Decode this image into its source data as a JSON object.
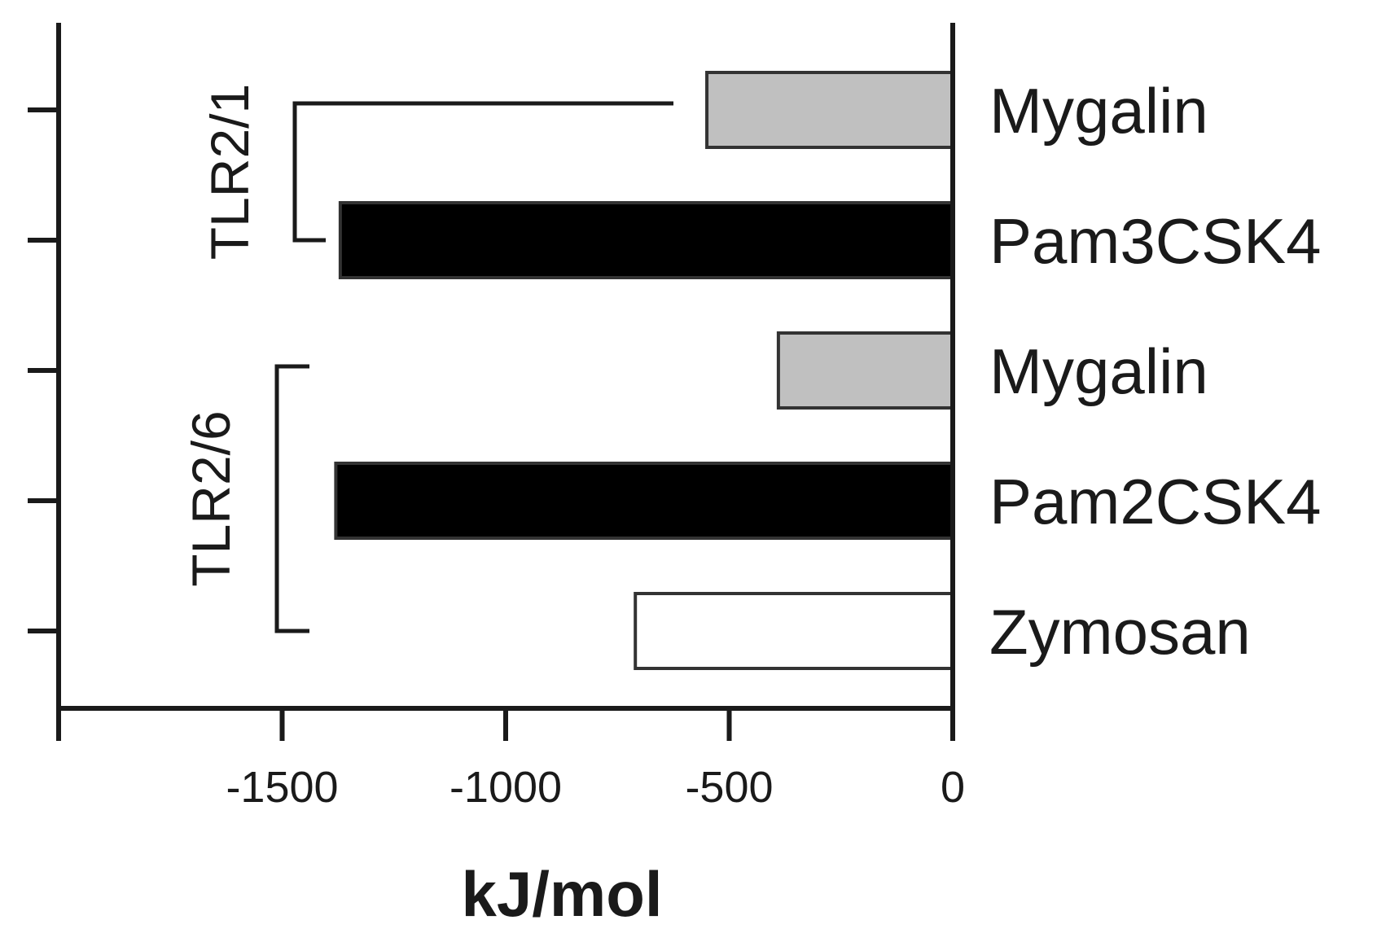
{
  "chart_data": {
    "type": "bar",
    "orientation": "horizontal",
    "categories": [
      "Mygalin",
      "Pam3CSK4",
      "Mygalin",
      "Pam2CSK4",
      "Zymosan"
    ],
    "values": [
      -550,
      -1370,
      -390,
      -1380,
      -710
    ],
    "bar_colors": [
      "#c0c0c0",
      "#000000",
      "#c0c0c0",
      "#000000",
      "#ffffff"
    ],
    "xlabel": "kJ/mol",
    "xlim": [
      -2000,
      0
    ],
    "xticks": [
      -1500,
      -1000,
      -500,
      0
    ],
    "xtick_labels": [
      "-1500",
      "-1000",
      "-500",
      "0"
    ],
    "category_label_position": "right",
    "groups": [
      {
        "label": "TLR2/1",
        "members": [
          0,
          1
        ]
      },
      {
        "label": "TLR2/6",
        "members": [
          2,
          3,
          4
        ]
      }
    ],
    "grid": false,
    "legend": "none"
  }
}
